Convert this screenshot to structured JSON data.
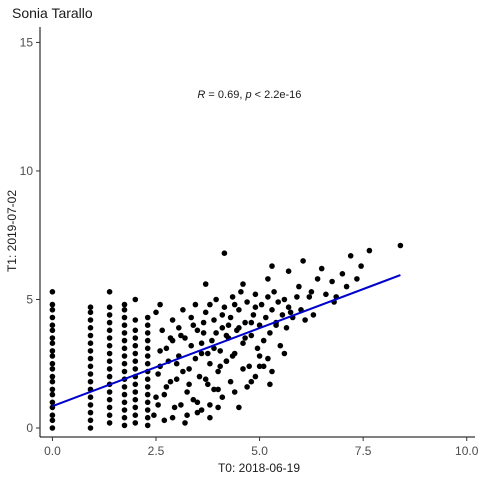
{
  "chart_data": {
    "type": "scatter",
    "title": "Sonia Tarallo",
    "xlabel": "T0: 2018-06-19",
    "ylabel": "T1: 2019-07-02",
    "xlim": [
      -0.3,
      10.2
    ],
    "ylim": [
      -0.35,
      15.6
    ],
    "x_ticks": [
      0.0,
      2.5,
      5.0,
      7.5,
      10.0
    ],
    "x_tick_labels": [
      "0.0",
      "2.5",
      "5.0",
      "7.5",
      "10.0"
    ],
    "y_ticks": [
      0,
      5,
      10,
      15
    ],
    "y_tick_labels": [
      "0",
      "5",
      "10",
      "15"
    ],
    "annotation": {
      "r_label": "R",
      "r_text": " = 0.69, ",
      "p_label": "p",
      "p_text": " < 2.2e-16",
      "x": 3.5,
      "y": 13.0
    },
    "fit_line": {
      "x": [
        0.0,
        8.4
      ],
      "y": [
        0.85,
        5.95
      ],
      "color": "#0000cc"
    },
    "grid": false,
    "point_color": "#000000",
    "points": [
      [
        0,
        0
      ],
      [
        0,
        0.3
      ],
      [
        0,
        0.5
      ],
      [
        0,
        0.8
      ],
      [
        0,
        1.0
      ],
      [
        0,
        1.3
      ],
      [
        0,
        1.5
      ],
      [
        0,
        1.8
      ],
      [
        0,
        2.0
      ],
      [
        0,
        2.3
      ],
      [
        0,
        2.5
      ],
      [
        0,
        2.8
      ],
      [
        0,
        3.0
      ],
      [
        0,
        3.3
      ],
      [
        0,
        3.5
      ],
      [
        0,
        3.8
      ],
      [
        0,
        4.0
      ],
      [
        0,
        4.3
      ],
      [
        0,
        4.6
      ],
      [
        0,
        4.8
      ],
      [
        0,
        5.3
      ],
      [
        0.92,
        0
      ],
      [
        0.92,
        0.3
      ],
      [
        0.92,
        0.6
      ],
      [
        0.92,
        0.9
      ],
      [
        0.92,
        1.2
      ],
      [
        0.92,
        1.5
      ],
      [
        0.92,
        1.8
      ],
      [
        0.92,
        2.1
      ],
      [
        0.92,
        2.4
      ],
      [
        0.92,
        2.7
      ],
      [
        0.92,
        3.0
      ],
      [
        0.92,
        3.3
      ],
      [
        0.92,
        3.6
      ],
      [
        0.92,
        3.9
      ],
      [
        0.92,
        4.2
      ],
      [
        0.92,
        4.5
      ],
      [
        0.92,
        4.7
      ],
      [
        1.38,
        0.2
      ],
      [
        1.38,
        0.5
      ],
      [
        1.38,
        0.8
      ],
      [
        1.38,
        1.1
      ],
      [
        1.38,
        1.4
      ],
      [
        1.38,
        1.7
      ],
      [
        1.38,
        2.0
      ],
      [
        1.38,
        2.3
      ],
      [
        1.38,
        2.6
      ],
      [
        1.38,
        2.9
      ],
      [
        1.38,
        3.2
      ],
      [
        1.38,
        3.5
      ],
      [
        1.38,
        3.8
      ],
      [
        1.38,
        4.1
      ],
      [
        1.38,
        4.4
      ],
      [
        1.38,
        4.7
      ],
      [
        1.38,
        5.3
      ],
      [
        1.74,
        0.1
      ],
      [
        1.74,
        0.4
      ],
      [
        1.74,
        0.7
      ],
      [
        1.74,
        1.0
      ],
      [
        1.74,
        1.3
      ],
      [
        1.74,
        1.6
      ],
      [
        1.74,
        1.9
      ],
      [
        1.74,
        2.2
      ],
      [
        1.74,
        2.5
      ],
      [
        1.74,
        2.8
      ],
      [
        1.74,
        3.1
      ],
      [
        1.74,
        3.4
      ],
      [
        1.74,
        3.7
      ],
      [
        1.74,
        4.0
      ],
      [
        1.74,
        4.3
      ],
      [
        1.74,
        4.6
      ],
      [
        1.74,
        4.8
      ],
      [
        2.0,
        0.2
      ],
      [
        2.0,
        0.5
      ],
      [
        2.0,
        0.8
      ],
      [
        2.0,
        1.1
      ],
      [
        2.0,
        1.4
      ],
      [
        2.0,
        1.7
      ],
      [
        2.0,
        2.0
      ],
      [
        2.0,
        2.3
      ],
      [
        2.0,
        2.6
      ],
      [
        2.0,
        2.9
      ],
      [
        2.0,
        3.2
      ],
      [
        2.0,
        3.5
      ],
      [
        2.0,
        3.8
      ],
      [
        2.0,
        4.2
      ],
      [
        2.0,
        5.0
      ],
      [
        2.3,
        0.1
      ],
      [
        2.3,
        0.4
      ],
      [
        2.3,
        0.7
      ],
      [
        2.3,
        1.0
      ],
      [
        2.3,
        1.3
      ],
      [
        2.3,
        1.6
      ],
      [
        2.3,
        1.9
      ],
      [
        2.3,
        2.2
      ],
      [
        2.3,
        2.5
      ],
      [
        2.3,
        2.8
      ],
      [
        2.3,
        3.1
      ],
      [
        2.3,
        3.4
      ],
      [
        2.3,
        3.7
      ],
      [
        2.3,
        4.0
      ],
      [
        2.3,
        4.3
      ],
      [
        2.45,
        0.5
      ],
      [
        2.5,
        1.2
      ],
      [
        2.55,
        2.1
      ],
      [
        2.6,
        3.0
      ],
      [
        2.65,
        3.8
      ],
      [
        2.5,
        4.5
      ],
      [
        2.7,
        0.3
      ],
      [
        2.75,
        1.6
      ],
      [
        2.8,
        2.6
      ],
      [
        2.85,
        3.5
      ],
      [
        2.6,
        4.8
      ],
      [
        2.9,
        4.2
      ],
      [
        2.95,
        0.8
      ],
      [
        3.0,
        1.9
      ],
      [
        3.05,
        2.8
      ],
      [
        3.1,
        3.6
      ],
      [
        3.15,
        4.6
      ],
      [
        3.2,
        0.2
      ],
      [
        3.25,
        1.4
      ],
      [
        3.3,
        2.3
      ],
      [
        3.35,
        3.2
      ],
      [
        3.4,
        4.0
      ],
      [
        3.45,
        4.8
      ],
      [
        3.5,
        1.0
      ],
      [
        3.55,
        2.0
      ],
      [
        3.6,
        2.9
      ],
      [
        3.65,
        3.7
      ],
      [
        3.7,
        4.5
      ],
      [
        3.75,
        1.7
      ],
      [
        3.8,
        2.5
      ],
      [
        3.85,
        3.4
      ],
      [
        3.9,
        4.2
      ],
      [
        3.95,
        5.0
      ],
      [
        4.0,
        2.2
      ],
      [
        4.05,
        3.0
      ],
      [
        4.1,
        3.9
      ],
      [
        4.15,
        4.7
      ],
      [
        4.2,
        2.6
      ],
      [
        4.25,
        3.5
      ],
      [
        4.3,
        4.3
      ],
      [
        4.35,
        5.1
      ],
      [
        4.4,
        2.9
      ],
      [
        4.45,
        3.8
      ],
      [
        4.5,
        4.6
      ],
      [
        4.55,
        5.3
      ],
      [
        4.6,
        3.3
      ],
      [
        4.65,
        4.1
      ],
      [
        4.7,
        4.9
      ],
      [
        4.75,
        2.4
      ],
      [
        4.8,
        3.6
      ],
      [
        4.85,
        4.4
      ],
      [
        4.9,
        5.2
      ],
      [
        4.95,
        3.1
      ],
      [
        5.0,
        4.0
      ],
      [
        5.05,
        4.8
      ],
      [
        5.1,
        3.4
      ],
      [
        5.15,
        4.3
      ],
      [
        5.2,
        5.1
      ],
      [
        5.25,
        3.7
      ],
      [
        5.3,
        4.6
      ],
      [
        5.35,
        5.3
      ],
      [
        5.4,
        4.0
      ],
      [
        5.45,
        4.9
      ],
      [
        5.5,
        3.2
      ],
      [
        5.55,
        4.4
      ],
      [
        5.6,
        5.0
      ],
      [
        5.65,
        3.9
      ],
      [
        5.7,
        4.7
      ],
      [
        5.8,
        4.3
      ],
      [
        5.9,
        5.1
      ],
      [
        6.0,
        4.6
      ],
      [
        6.1,
        4.2
      ],
      [
        2.55,
        0.9
      ],
      [
        2.7,
        1.3
      ],
      [
        2.85,
        1.8
      ],
      [
        3.0,
        2.5
      ],
      [
        3.15,
        2.2
      ],
      [
        3.3,
        1.7
      ],
      [
        3.45,
        2.7
      ],
      [
        3.6,
        3.3
      ],
      [
        3.75,
        2.9
      ],
      [
        3.9,
        3.1
      ],
      [
        4.05,
        2.4
      ],
      [
        4.2,
        3.6
      ],
      [
        4.35,
        2.8
      ],
      [
        4.5,
        3.9
      ],
      [
        4.65,
        3.5
      ],
      [
        4.8,
        4.1
      ],
      [
        3.1,
        0.9
      ],
      [
        3.4,
        1.1
      ],
      [
        3.7,
        1.9
      ],
      [
        4.0,
        1.5
      ],
      [
        4.3,
        1.8
      ],
      [
        4.6,
        2.3
      ],
      [
        4.9,
        2.0
      ],
      [
        5.2,
        2.7
      ],
      [
        3.5,
        0.6
      ],
      [
        3.8,
        0.9
      ],
      [
        4.1,
        1.2
      ],
      [
        4.4,
        1.4
      ],
      [
        4.7,
        1.6
      ],
      [
        5.0,
        2.4
      ],
      [
        5.3,
        2.2
      ],
      [
        5.6,
        2.9
      ],
      [
        2.9,
        0.4
      ],
      [
        3.25,
        0.5
      ],
      [
        3.6,
        0.7
      ],
      [
        4.0,
        0.8
      ],
      [
        2.6,
        2.4
      ],
      [
        2.75,
        3.1
      ],
      [
        2.9,
        3.4
      ],
      [
        3.05,
        3.9
      ],
      [
        3.2,
        3.5
      ],
      [
        3.35,
        4.3
      ],
      [
        3.5,
        3.8
      ],
      [
        3.65,
        4.1
      ],
      [
        3.8,
        4.8
      ],
      [
        3.95,
        3.7
      ],
      [
        4.1,
        4.4
      ],
      [
        4.25,
        4.0
      ],
      [
        5.7,
        6.1
      ],
      [
        5.95,
        5.5
      ],
      [
        6.05,
        6.5
      ],
      [
        6.25,
        5.3
      ],
      [
        6.5,
        6.2
      ],
      [
        6.4,
        5.8
      ],
      [
        6.75,
        5.7
      ],
      [
        6.85,
        5.1
      ],
      [
        7.0,
        6.0
      ],
      [
        7.2,
        6.7
      ],
      [
        7.35,
        5.8
      ],
      [
        7.45,
        6.3
      ],
      [
        7.1,
        5.5
      ],
      [
        7.65,
        6.9
      ],
      [
        6.2,
        5.1
      ],
      [
        8.4,
        7.1
      ],
      [
        4.15,
        6.8
      ],
      [
        5.2,
        5.8
      ],
      [
        5.3,
        6.3
      ],
      [
        4.6,
        5.6
      ],
      [
        3.7,
        5.6
      ],
      [
        6.8,
        4.9
      ],
      [
        5.0,
        2.8
      ],
      [
        5.25,
        1.7
      ],
      [
        4.4,
        4.8
      ],
      [
        4.9,
        4.7
      ],
      [
        5.4,
        4.1
      ],
      [
        5.75,
        4.5
      ],
      [
        6.3,
        4.4
      ],
      [
        6.6,
        5.2
      ],
      [
        5.1,
        2.4
      ],
      [
        4.8,
        1.8
      ],
      [
        3.9,
        1.5
      ],
      [
        4.2,
        2.6
      ],
      [
        4.5,
        0.8
      ],
      [
        3.8,
        0.4
      ]
    ]
  }
}
